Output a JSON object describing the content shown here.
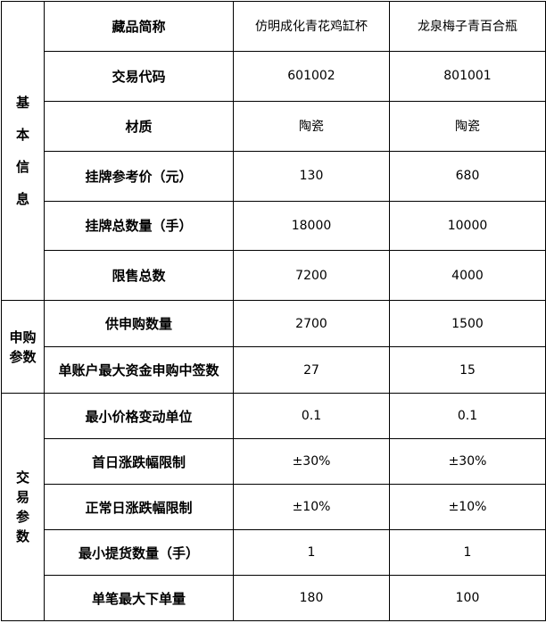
{
  "table": {
    "groups": [
      {
        "label": "基本信息",
        "rows": [
          [
            "藏品简称",
            "仿明成化青花鸡缸杯",
            "龙泉梅子青百合瓶"
          ],
          [
            "交易代码",
            "601002",
            "801001"
          ],
          [
            "材质",
            "陶瓷",
            "陶瓷"
          ],
          [
            "挂牌参考价（元）",
            "130",
            "680"
          ],
          [
            "挂牌总数量（手）",
            "18000",
            "10000"
          ],
          [
            "限售总数",
            "7200",
            "4000"
          ]
        ]
      },
      {
        "label": "申购参数",
        "rows": [
          [
            "供申购数量",
            "2700",
            "1500"
          ],
          [
            "单账户最大资金申购中签数",
            "27",
            "15"
          ]
        ]
      },
      {
        "label": "交易参数",
        "rows": [
          [
            "最小价格变动单位",
            "0.1",
            "0.1"
          ],
          [
            "首日涨跌幅限制",
            "±30%",
            "±30%"
          ],
          [
            "正常日涨跌幅限制",
            "±10%",
            "±10%"
          ],
          [
            "最小提货数量（手）",
            "1",
            "1"
          ],
          [
            "单笔最大下单量",
            "180",
            "100"
          ]
        ]
      }
    ]
  }
}
